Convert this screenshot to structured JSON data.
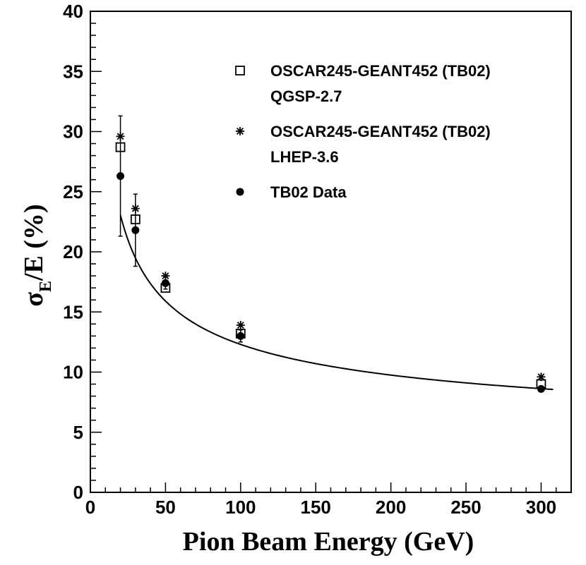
{
  "chart_data": {
    "type": "scatter",
    "title": "",
    "xlabel": "Pion Beam Energy (GeV)",
    "ylabel": {
      "symbol": "σ",
      "subscript": "E",
      "rest": "/E (%)"
    },
    "xlim": [
      0,
      320
    ],
    "ylim": [
      0,
      40
    ],
    "xticks": [
      0,
      50,
      100,
      150,
      200,
      250,
      300
    ],
    "yticks": [
      0,
      5,
      10,
      15,
      20,
      25,
      30,
      35,
      40
    ],
    "grid": false,
    "legend_position": "top-right",
    "legend": [
      {
        "marker": "open-square",
        "lines": [
          "OSCAR245-GEANT452 (TB02)",
          "QGSP-2.7"
        ]
      },
      {
        "marker": "asterisk",
        "lines": [
          "OSCAR245-GEANT452 (TB02)",
          "LHEP-3.6"
        ]
      },
      {
        "marker": "filled-circle",
        "lines": [
          "TB02 Data"
        ]
      }
    ],
    "series": [
      {
        "marker": "open-square",
        "points": [
          {
            "x": 20,
            "y": 28.7
          },
          {
            "x": 30,
            "y": 22.7
          },
          {
            "x": 50,
            "y": 17.0
          },
          {
            "x": 100,
            "y": 13.2
          },
          {
            "x": 300,
            "y": 9.0
          }
        ]
      },
      {
        "marker": "asterisk",
        "points": [
          {
            "x": 20,
            "y": 29.6
          },
          {
            "x": 30,
            "y": 23.6
          },
          {
            "x": 50,
            "y": 18.0
          },
          {
            "x": 100,
            "y": 13.9
          },
          {
            "x": 300,
            "y": 9.6
          }
        ]
      },
      {
        "marker": "filled-circle",
        "points": [
          {
            "x": 20,
            "y": 26.3,
            "err": 5.0
          },
          {
            "x": 30,
            "y": 21.8,
            "err": 3.0
          },
          {
            "x": 50,
            "y": 17.4,
            "err": 0.5
          },
          {
            "x": 100,
            "y": 13.0,
            "err": 0.5
          },
          {
            "x": 300,
            "y": 8.6,
            "err": 0.2
          }
        ]
      }
    ],
    "fit_curve": {
      "form": "y = a / sqrt(x) + b",
      "a": 87.0,
      "b": 3.6,
      "x_range": [
        20,
        308
      ]
    }
  }
}
